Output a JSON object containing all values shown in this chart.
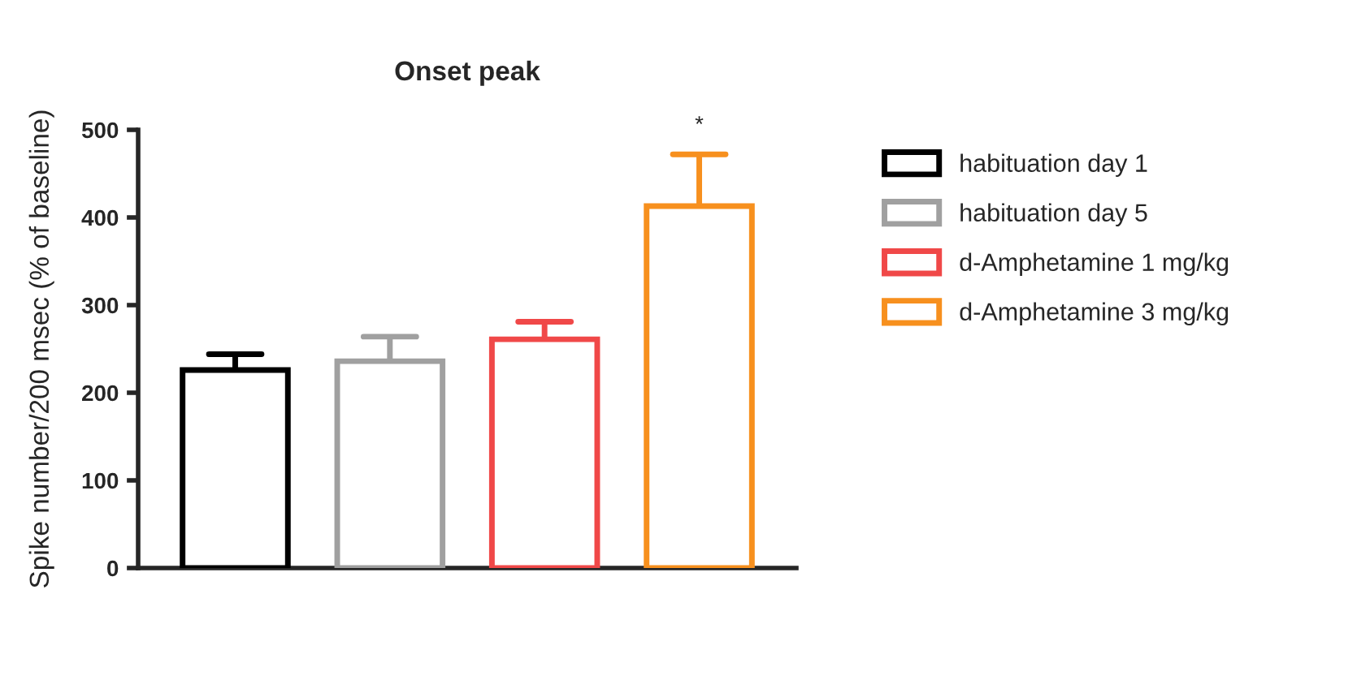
{
  "chart_data": {
    "type": "bar",
    "title": "Onset peak",
    "ylabel": "Spike number/200 msec (% of baseline)",
    "categories": [
      null
    ],
    "series": [
      {
        "name": "habituation day 1",
        "color": "#000000",
        "values": [
          226
        ],
        "errors": [
          [
            226,
            244
          ]
        ]
      },
      {
        "name": "habituation day 5",
        "color": "#a0a0a0",
        "values": [
          236
        ],
        "errors": [
          [
            236,
            264
          ]
        ]
      },
      {
        "name": "d-Amphetamine 1 mg/kg",
        "color": "#f04848",
        "values": [
          261
        ],
        "errors": [
          [
            261,
            281
          ]
        ]
      },
      {
        "name": "d-Amphetamine 3 mg/kg",
        "color": "#f7901e",
        "values": [
          413
        ],
        "errors": [
          [
            413,
            472
          ]
        ]
      }
    ],
    "annotations": [
      "*"
    ],
    "ylim": [
      0,
      500
    ],
    "yticks": [
      0,
      100,
      200,
      300,
      400,
      500
    ],
    "grid": false,
    "legend": "right"
  }
}
